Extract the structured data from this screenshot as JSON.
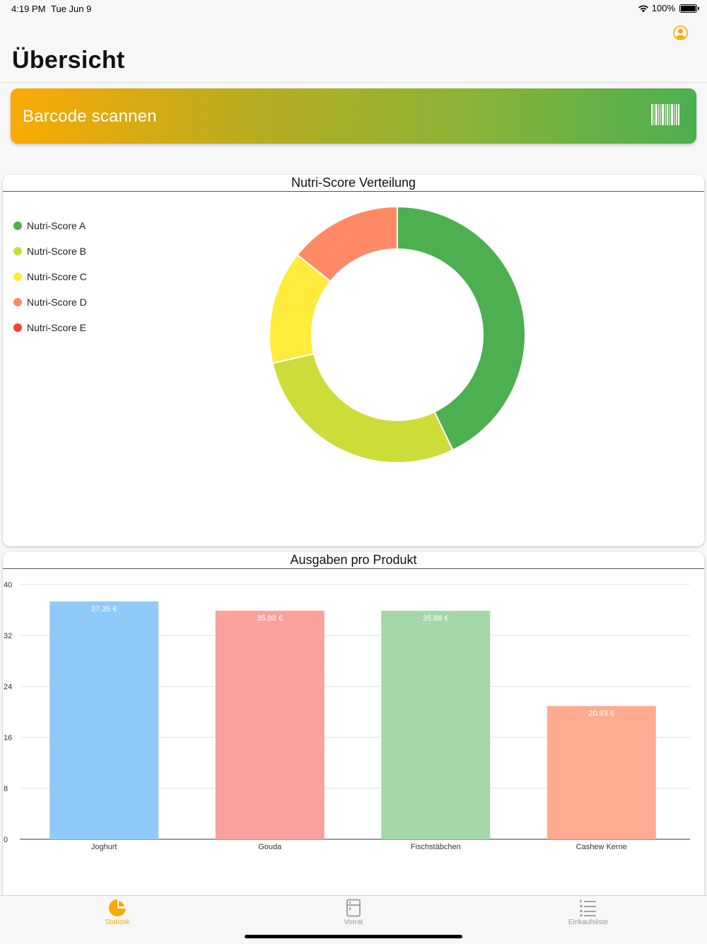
{
  "status_bar": {
    "time": "4:19 PM",
    "date": "Tue Jun 9",
    "battery": "100%"
  },
  "header": {
    "title": "Übersicht",
    "profile_icon": "person-circle-icon"
  },
  "scan_button": {
    "label": "Barcode scannen",
    "icon": "barcode-icon",
    "gradient": [
      "#fbaa04",
      "#4caf50"
    ]
  },
  "pie_card": {
    "title": "Nutri-Score Verteilung",
    "legend": [
      {
        "label": "Nutri-Score A",
        "color": "#4caf50"
      },
      {
        "label": "Nutri-Score B",
        "color": "#cddc39"
      },
      {
        "label": "Nutri-Score C",
        "color": "#ffeb3b"
      },
      {
        "label": "Nutri-Score D",
        "color": "#ff8a65"
      },
      {
        "label": "Nutri-Score E",
        "color": "#f44336"
      }
    ]
  },
  "bar_card": {
    "title": "Ausgaben pro Produkt"
  },
  "chart_data": [
    {
      "type": "pie",
      "title": "Nutri-Score Verteilung",
      "donut": true,
      "legend_position": "left",
      "categories": [
        "Nutri-Score A",
        "Nutri-Score B",
        "Nutri-Score C",
        "Nutri-Score D",
        "Nutri-Score E"
      ],
      "values": [
        6,
        4,
        2,
        2,
        0
      ],
      "colors": [
        "#4caf50",
        "#cddc39",
        "#ffeb3b",
        "#ff8a65",
        "#f44336"
      ]
    },
    {
      "type": "bar",
      "title": "Ausgaben pro Produkt",
      "categories": [
        "Joghurt",
        "Gouda",
        "Fischstäbchen",
        "Cashew Kerne"
      ],
      "values": [
        37.35,
        35.88,
        35.88,
        20.93
      ],
      "data_labels": [
        "37.35 €",
        "35.88 €",
        "35.88 €",
        "20.93 €"
      ],
      "colors": [
        "#90caf9",
        "#f9a19a",
        "#a5d6a7",
        "#ffab91"
      ],
      "ylim": [
        0,
        40
      ],
      "yticks": [
        "0",
        "8",
        "16",
        "24",
        "32",
        "40"
      ],
      "grid": true
    }
  ],
  "tab_bar": {
    "tabs": [
      {
        "label": "Statistik",
        "icon": "pie-chart-icon",
        "active": true
      },
      {
        "label": "Vorrat",
        "icon": "fridge-icon",
        "active": false
      },
      {
        "label": "Einkaufsliste",
        "icon": "list-icon",
        "active": false
      }
    ],
    "accent_color": "#fbaa04"
  }
}
